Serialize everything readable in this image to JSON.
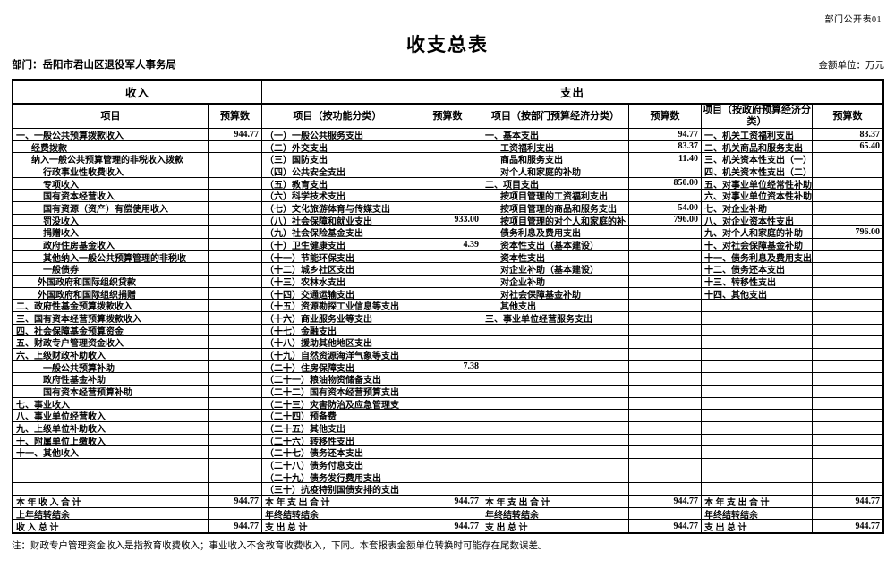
{
  "page": {
    "corner_label": "部门公开表01",
    "title": "收支总表",
    "department_label": "部门：岳阳市君山区退役军人事务局",
    "unit_label": "金额单位：万元",
    "note": "注：财政专户管理资金收入是指教育收费收入；事业收入不含教育收费收入，下同。本套报表金额单位转换时可能存在尾数误差。"
  },
  "table": {
    "group_headers": {
      "income": "收入",
      "expenditure": "支出"
    },
    "column_headers": [
      "项目",
      "预算数",
      "项目（按功能分类）",
      "预算数",
      "项目（按部门预算经济分类）",
      "预算数",
      "项目（按政府预算经济分类）",
      "预算数"
    ],
    "rows": [
      [
        "一、一般公共预算拨款收入",
        0,
        "944.77",
        "（一）一般公共服务支出",
        "",
        "一、基本支出",
        0,
        "94.77",
        "一、机关工资福利支出",
        "83.37"
      ],
      [
        "经费拨款",
        1,
        "",
        "（二）外交支出",
        "",
        "工资福利支出",
        1,
        "83.37",
        "二、机关商品和服务支出",
        "65.40"
      ],
      [
        "纳入一般公共预算管理的非税收入拨款",
        1,
        "",
        "（三）国防支出",
        "",
        "商品和服务支出",
        1,
        "11.40",
        "三、机关资本性支出（一）",
        ""
      ],
      [
        "行政事业性收费收入",
        3,
        "",
        "（四）公共安全支出",
        "",
        "对个人和家庭的补助",
        1,
        "",
        "四、机关资本性支出（二）",
        ""
      ],
      [
        "专项收入",
        3,
        "",
        "（五）教育支出",
        "",
        "二、项目支出",
        0,
        "850.00",
        "五、对事业单位经常性补助",
        ""
      ],
      [
        "国有资本经营收入",
        3,
        "",
        "（六）科学技术支出",
        "",
        "按项目管理的工资福利支出",
        1,
        "",
        "六、对事业单位资本性补助",
        ""
      ],
      [
        "国有资源（资产）有偿使用收入",
        3,
        "",
        "（七）文化旅游体育与传媒支出",
        "",
        "按项目管理的商品和服务支出",
        1,
        "54.00",
        "七、对企业补助",
        ""
      ],
      [
        "罚没收入",
        3,
        "",
        "（八）社会保障和就业支出",
        "933.00",
        "按项目管理的对个人和家庭的补",
        1,
        "796.00",
        "八、对企业资本性支出",
        ""
      ],
      [
        "捐赠收入",
        3,
        "",
        "（九）社会保险基金支出",
        "",
        "债务利息及费用支出",
        1,
        "",
        "九、对个人和家庭的补助",
        "796.00"
      ],
      [
        "政府住房基金收入",
        3,
        "",
        "（十）卫生健康支出",
        "4.39",
        "资本性支出（基本建设）",
        1,
        "",
        "十、对社会保障基金补助",
        ""
      ],
      [
        "其他纳入一般公共预算管理的非税收",
        3,
        "",
        "（十一）节能环保支出",
        "",
        "资本性支出",
        1,
        "",
        "十一、债务利息及费用支出",
        ""
      ],
      [
        "一般债券",
        3,
        "",
        "（十二）城乡社区支出",
        "",
        "对企业补助（基本建设）",
        1,
        "",
        "十二、债务还本支出",
        ""
      ],
      [
        "外国政府和国际组织贷款",
        2,
        "",
        "（十三）农林水支出",
        "",
        "对企业补助",
        1,
        "",
        "十三、转移性支出",
        ""
      ],
      [
        "外国政府和国际组织捐赠",
        2,
        "",
        "（十四）交通运输支出",
        "",
        "对社会保障基金补助",
        1,
        "",
        "十四、其他支出",
        ""
      ],
      [
        "二、政府性基金预算拨款收入",
        0,
        "",
        "（十五）资源勘探工业信息等支出",
        "",
        "其他支出",
        1,
        "",
        "",
        ""
      ],
      [
        "三、国有资本经营预算拨款收入",
        0,
        "",
        "（十六）商业服务业等支出",
        "",
        "三、事业单位经营服务支出",
        0,
        "",
        "",
        ""
      ],
      [
        "四、社会保障基金预算资金",
        0,
        "",
        "（十七）金融支出",
        "",
        "",
        0,
        "",
        "",
        ""
      ],
      [
        "五、财政专户管理资金收入",
        0,
        "",
        "（十八）援助其他地区支出",
        "",
        "",
        0,
        "",
        "",
        ""
      ],
      [
        "六、上级财政补助收入",
        0,
        "",
        "（十九）自然资源海洋气象等支出",
        "",
        "",
        0,
        "",
        "",
        ""
      ],
      [
        "一般公共预算补助",
        3,
        "",
        "（二十）住房保障支出",
        "7.38",
        "",
        0,
        "",
        "",
        ""
      ],
      [
        "政府性基金补助",
        3,
        "",
        "（二十一）粮油物资储备支出",
        "",
        "",
        0,
        "",
        "",
        ""
      ],
      [
        "国有资本经营预算补助",
        3,
        "",
        "（二十二）国有资本经营预算支出",
        "",
        "",
        0,
        "",
        "",
        ""
      ],
      [
        "七、事业收入",
        0,
        "",
        "（二十三）灾害防治及应急管理支",
        "",
        "",
        0,
        "",
        "",
        ""
      ],
      [
        "八、事业单位经营收入",
        0,
        "",
        "（二十四）预备费",
        "",
        "",
        0,
        "",
        "",
        ""
      ],
      [
        "九、上级单位补助收入",
        0,
        "",
        "（二十五）其他支出",
        "",
        "",
        0,
        "",
        "",
        ""
      ],
      [
        "十、附属单位上缴收入",
        0,
        "",
        "（二十六）转移性支出",
        "",
        "",
        0,
        "",
        "",
        ""
      ],
      [
        "十一、其他收入",
        0,
        "",
        "（二十七）债务还本支出",
        "",
        "",
        0,
        "",
        "",
        ""
      ],
      [
        "",
        0,
        "",
        "（二十八）债务付息支出",
        "",
        "",
        0,
        "",
        "",
        ""
      ],
      [
        "",
        0,
        "",
        "（二十九）债务发行费用支出",
        "",
        "",
        0,
        "",
        "",
        ""
      ],
      [
        "",
        0,
        "",
        "（三十）抗疫特别国债安排的支出",
        "",
        "",
        0,
        "",
        "",
        ""
      ],
      [
        "本 年 收 入 合 计",
        0,
        "944.77",
        "本 年 支 出 合 计",
        "944.77",
        "本 年 支 出 合 计",
        0,
        "944.77",
        "本 年 支 出 合 计",
        "944.77"
      ],
      [
        "上年结转结余",
        0,
        "",
        "年终结转结余",
        "",
        "年终结转结余",
        0,
        "",
        "年终结转结余",
        ""
      ],
      [
        "收 入 总 计",
        0,
        "944.77",
        "支 出 总 计",
        "944.77",
        "支 出 总 计",
        0,
        "944.77",
        "支 出 总 计",
        "944.77"
      ]
    ]
  }
}
